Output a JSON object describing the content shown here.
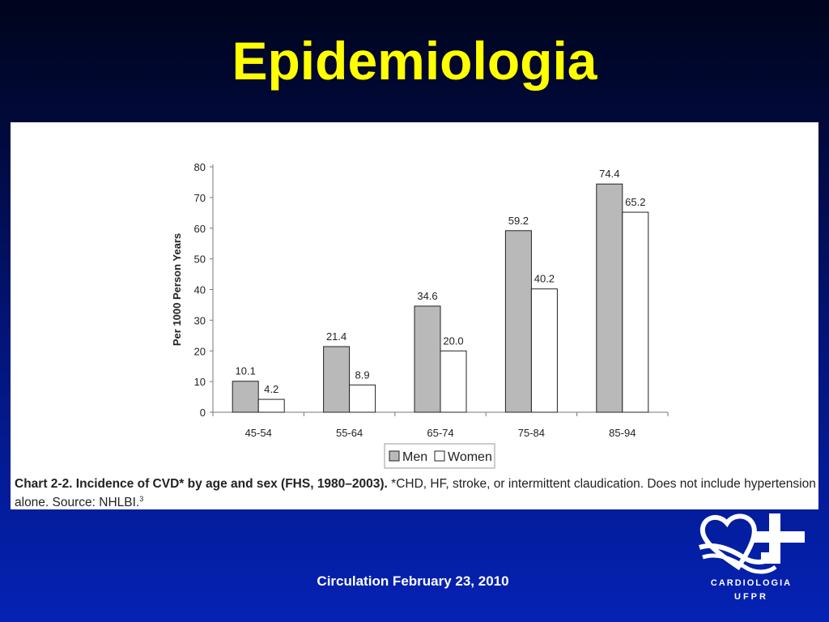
{
  "slide": {
    "title": "Epidemiologia",
    "footer": "Circulation  February 23, 2010"
  },
  "caption": {
    "bold": "Chart 2-2. Incidence of CVD* by age and sex (FHS, 1980–2003).",
    "rest": " *CHD, HF, stroke, or intermittent claudication. Does not include hypertension alone. Source: NHLBI.",
    "ref": "3"
  },
  "logo": {
    "line1": "CARDIOLOGIA",
    "line2": "UFPR"
  },
  "colors": {
    "title": "#ffff00",
    "men_bar": "#b9b9b9",
    "women_bar": "#ffffff",
    "bar_stroke": "#222222"
  },
  "chart_data": {
    "type": "bar",
    "categories": [
      "45-54",
      "55-64",
      "65-74",
      "75-84",
      "85-94"
    ],
    "series": [
      {
        "name": "Men",
        "values": [
          10.1,
          21.4,
          34.6,
          59.2,
          74.4
        ]
      },
      {
        "name": "Women",
        "values": [
          4.2,
          8.9,
          20.0,
          40.2,
          65.2
        ]
      }
    ],
    "value_labels": [
      [
        "10.1",
        "21.4",
        "34.6",
        "59.2",
        "74.4"
      ],
      [
        "4.2",
        "8.9",
        "20.0",
        "40.2",
        "65.2"
      ]
    ],
    "ylabel": "Per 1000 Person Years",
    "xlabel": "",
    "ylim": [
      0,
      80
    ],
    "yticks": [
      0,
      10,
      20,
      30,
      40,
      50,
      60,
      70,
      80
    ],
    "grid": false,
    "legend_position": "bottom-center"
  }
}
